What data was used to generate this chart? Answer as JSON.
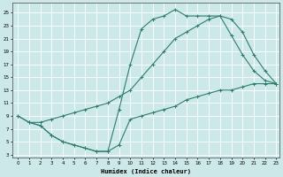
{
  "xlabel": "Humidex (Indice chaleur)",
  "xlim": [
    0,
    23
  ],
  "ylim": [
    3,
    26
  ],
  "yticks": [
    3,
    5,
    7,
    9,
    11,
    13,
    15,
    17,
    19,
    21,
    23,
    25
  ],
  "xticks": [
    0,
    1,
    2,
    3,
    4,
    5,
    6,
    7,
    8,
    9,
    10,
    11,
    12,
    13,
    14,
    15,
    16,
    17,
    18,
    19,
    20,
    21,
    22,
    23
  ],
  "bg_color": "#cce8e8",
  "grid_color": "#ffffff",
  "line_color": "#2e7d6e",
  "line1_x": [
    0,
    1,
    2,
    3,
    4,
    5,
    6,
    7,
    8,
    9,
    10,
    11,
    12,
    13,
    14,
    15,
    16,
    17,
    18,
    19,
    20,
    21,
    22,
    23
  ],
  "line1_y": [
    9,
    8,
    7.5,
    6,
    5,
    4.5,
    4,
    3.5,
    3.5,
    10,
    17,
    22.5,
    24,
    24.5,
    25.5,
    24.5,
    24.5,
    24.5,
    24.5,
    24,
    22,
    18.5,
    16,
    14
  ],
  "line2_x": [
    0,
    1,
    2,
    3,
    4,
    5,
    6,
    7,
    8,
    9,
    10,
    11,
    12,
    13,
    14,
    15,
    16,
    17,
    18,
    19,
    20,
    21,
    22,
    23
  ],
  "line2_y": [
    9,
    8,
    8,
    8.5,
    9,
    9.5,
    10,
    10.5,
    11,
    12,
    13,
    15,
    17,
    19,
    21,
    22,
    23,
    24,
    24.5,
    21.5,
    18.5,
    16,
    14.5,
    14
  ],
  "line3_x": [
    1,
    2,
    3,
    4,
    5,
    6,
    7,
    8,
    9,
    10,
    11,
    12,
    13,
    14,
    15,
    16,
    17,
    18,
    19,
    20,
    21,
    22,
    23
  ],
  "line3_y": [
    8,
    7.5,
    6,
    5,
    4.5,
    4,
    3.5,
    3.5,
    4.5,
    8.5,
    9,
    9.5,
    10,
    10.5,
    11.5,
    12,
    12.5,
    13,
    13,
    13.5,
    14,
    14,
    14
  ]
}
